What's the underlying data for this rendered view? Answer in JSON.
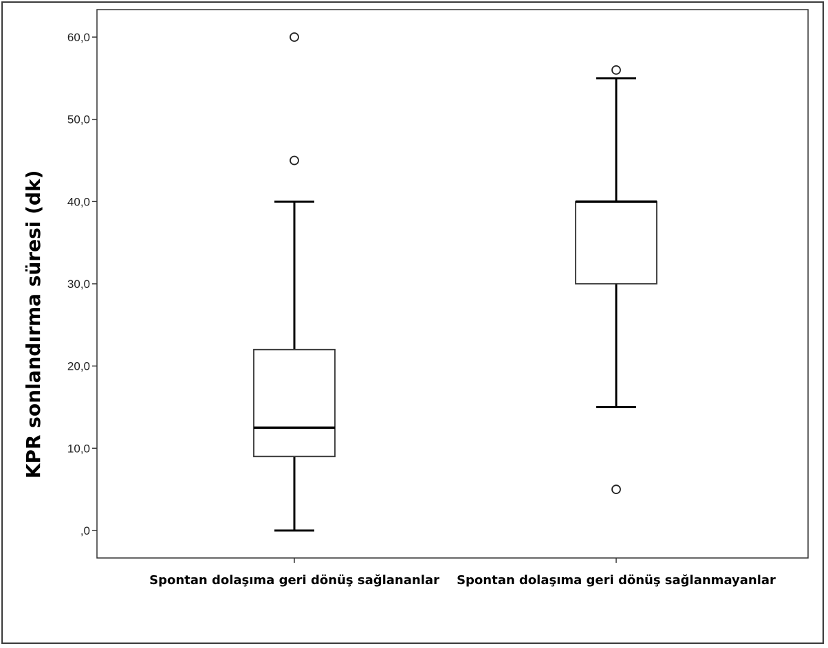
{
  "chart_data": {
    "type": "box",
    "title": "",
    "xlabel": "",
    "ylabel": "KPR sonlandırma süresi (dk)",
    "ylim": [
      0,
      60
    ],
    "ytick_values": [
      0,
      10,
      20,
      30,
      40,
      50,
      60
    ],
    "ytick_labels": [
      ",0",
      "10,0",
      "20,0",
      "30,0",
      "40,0",
      "50,0",
      "60,0"
    ],
    "grid": false,
    "categories": [
      "Spontan dolaşıma geri dönüş sağlananlar",
      "Spontan dolaşıma geri dönüş sağlanmayanlar"
    ],
    "boxes": [
      {
        "whisker_low": 0,
        "q1": 9,
        "median": 12.5,
        "q3": 22,
        "whisker_high": 40,
        "outliers": [
          45,
          60
        ]
      },
      {
        "whisker_low": 15,
        "q1": 30,
        "median": 40,
        "q3": 40,
        "whisker_high": 55,
        "outliers": [
          5,
          56
        ]
      }
    ]
  }
}
